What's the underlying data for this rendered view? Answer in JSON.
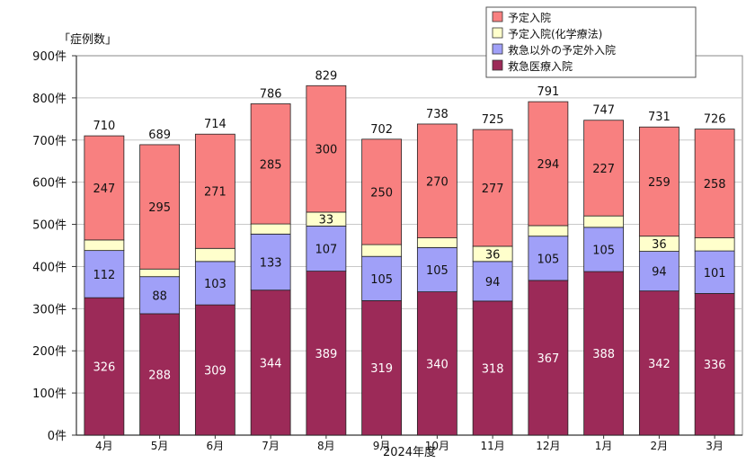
{
  "chart_data": {
    "type": "bar",
    "stacked": true,
    "ylabel": "「症例数」",
    "xlabel": "2024年度",
    "ylim": [
      0,
      900
    ],
    "yticks": [
      {
        "value": 0,
        "label": "0件"
      },
      {
        "value": 100,
        "label": "100件"
      },
      {
        "value": 200,
        "label": "200件"
      },
      {
        "value": 300,
        "label": "300件"
      },
      {
        "value": 400,
        "label": "400件"
      },
      {
        "value": 500,
        "label": "500件"
      },
      {
        "value": 600,
        "label": "600件"
      },
      {
        "value": 700,
        "label": "700件"
      },
      {
        "value": 800,
        "label": "800件"
      },
      {
        "value": 900,
        "label": "900件"
      }
    ],
    "categories": [
      "4月",
      "5月",
      "6月",
      "7月",
      "8月",
      "9月",
      "10月",
      "11月",
      "12月",
      "1月",
      "2月",
      "3月"
    ],
    "series": [
      {
        "name": "救急医療入院",
        "color": "#9c2a58",
        "label_color": "#ffffff",
        "values": [
          326,
          288,
          309,
          344,
          389,
          319,
          340,
          318,
          367,
          388,
          342,
          336
        ],
        "labels": [
          "326",
          "288",
          "309",
          "344",
          "389",
          "319",
          "340",
          "318",
          "367",
          "388",
          "342",
          "336"
        ]
      },
      {
        "name": "救急以外の予定外入院",
        "color": "#a0a0f8",
        "label_color": "#111111",
        "values": [
          112,
          88,
          103,
          133,
          107,
          105,
          105,
          94,
          105,
          105,
          94,
          101
        ],
        "labels": [
          "112",
          "88",
          "103",
          "133",
          "107",
          "105",
          "105",
          "94",
          "105",
          "105",
          "94",
          "101"
        ]
      },
      {
        "name": "予定入院(化学療法)",
        "color": "#ffffcc",
        "label_color": "#111111",
        "values": [
          25,
          18,
          31,
          24,
          33,
          28,
          23,
          36,
          25,
          27,
          36,
          31
        ],
        "labels": [
          "",
          "",
          "",
          "",
          "33",
          "",
          "",
          "36",
          "",
          "",
          "36",
          ""
        ]
      },
      {
        "name": "予定入院",
        "color": "#f88080",
        "label_color": "#111111",
        "values": [
          247,
          295,
          271,
          285,
          300,
          250,
          270,
          277,
          294,
          227,
          259,
          258
        ],
        "labels": [
          "247",
          "295",
          "271",
          "285",
          "300",
          "250",
          "270",
          "277",
          "294",
          "227",
          "259",
          "258"
        ]
      }
    ],
    "totals": [
      "710",
      "689",
      "714",
      "786",
      "829",
      "702",
      "738",
      "725",
      "791",
      "747",
      "731",
      "726"
    ],
    "legend": {
      "placement": "top-right",
      "items": [
        {
          "label": "予定入院",
          "color": "#f88080"
        },
        {
          "label": "予定入院(化学療法)",
          "color": "#ffffcc"
        },
        {
          "label": "救急以外の予定外入院",
          "color": "#a0a0f8"
        },
        {
          "label": "救急医療入院",
          "color": "#9c2a58"
        }
      ]
    },
    "grid": true
  }
}
